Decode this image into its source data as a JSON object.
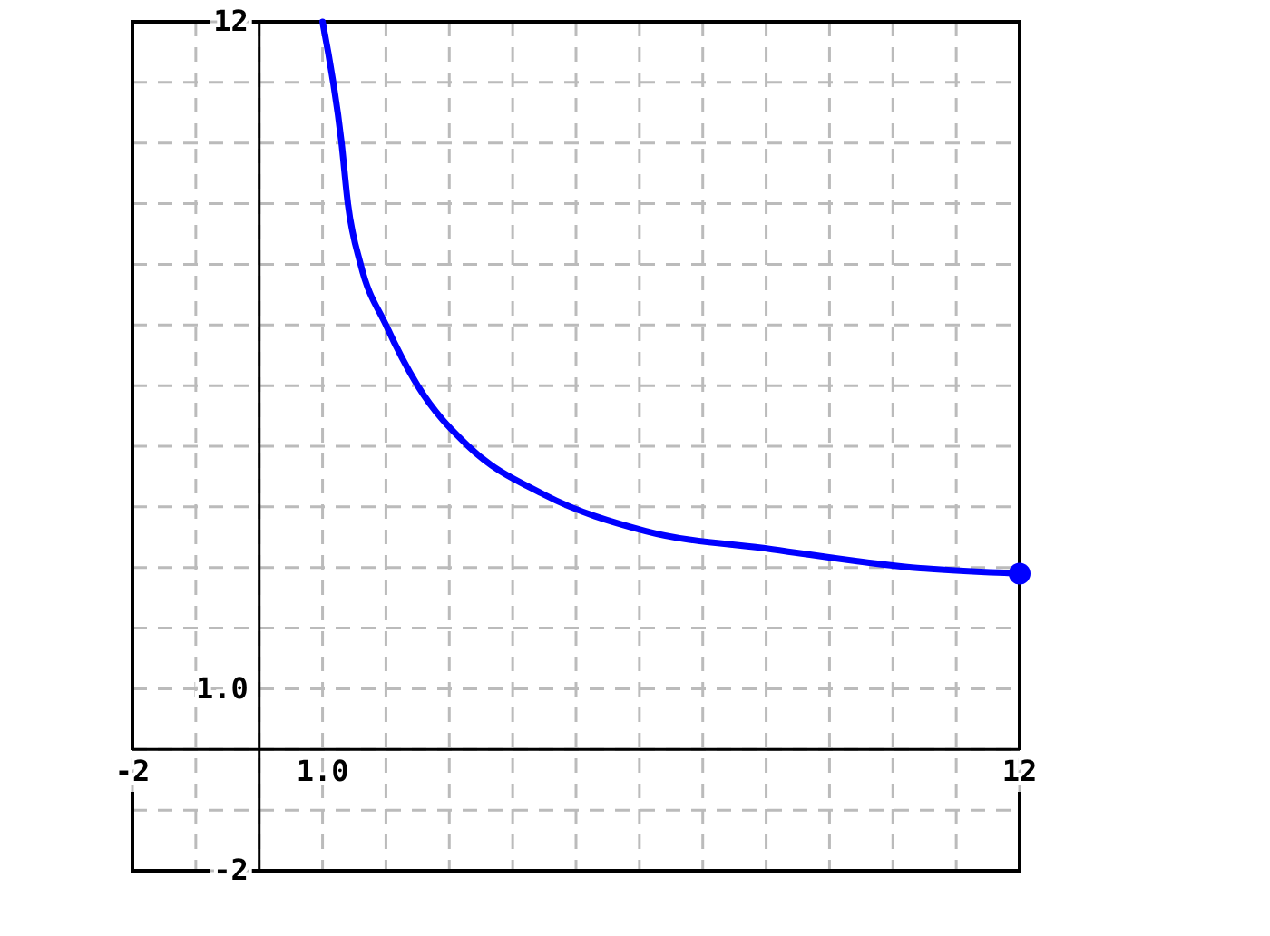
{
  "chart_data": {
    "type": "line",
    "xlim": [
      -2,
      12
    ],
    "ylim": [
      -2,
      12
    ],
    "xticks": [
      {
        "value": -2,
        "label": "-2"
      },
      {
        "value": -1,
        "label": null
      },
      {
        "value": 0,
        "label": null
      },
      {
        "value": 1,
        "label": "1.0"
      },
      {
        "value": 2,
        "label": null
      },
      {
        "value": 3,
        "label": null
      },
      {
        "value": 4,
        "label": null
      },
      {
        "value": 5,
        "label": null
      },
      {
        "value": 6,
        "label": null
      },
      {
        "value": 7,
        "label": null
      },
      {
        "value": 8,
        "label": null
      },
      {
        "value": 9,
        "label": null
      },
      {
        "value": 10,
        "label": null
      },
      {
        "value": 11,
        "label": null
      },
      {
        "value": 12,
        "label": "12"
      }
    ],
    "yticks": [
      {
        "value": -2,
        "label": "-2"
      },
      {
        "value": -1,
        "label": null
      },
      {
        "value": 0,
        "label": null
      },
      {
        "value": 1,
        "label": "1.0"
      },
      {
        "value": 2,
        "label": null
      },
      {
        "value": 3,
        "label": null
      },
      {
        "value": 4,
        "label": null
      },
      {
        "value": 5,
        "label": null
      },
      {
        "value": 6,
        "label": null
      },
      {
        "value": 7,
        "label": null
      },
      {
        "value": 8,
        "label": null
      },
      {
        "value": 9,
        "label": null
      },
      {
        "value": 10,
        "label": null
      },
      {
        "value": 11,
        "label": null
      },
      {
        "value": 12,
        "label": "12"
      }
    ],
    "grid": true,
    "line_style": "solid",
    "series": [
      {
        "color": "#0000ff",
        "x": [
          1,
          1.3,
          1.4,
          1.6,
          2,
          2.5,
          3.3,
          4.5,
          6.1,
          8.1,
          10.3,
          12
        ],
        "values": [
          12,
          10,
          9,
          8,
          7,
          6,
          5,
          4.2,
          3.6,
          3.3,
          3,
          2.9
        ]
      },
      {
        "type": "scatter",
        "color": "#0000ff",
        "x": [
          12
        ],
        "values": [
          2.9
        ]
      }
    ]
  }
}
